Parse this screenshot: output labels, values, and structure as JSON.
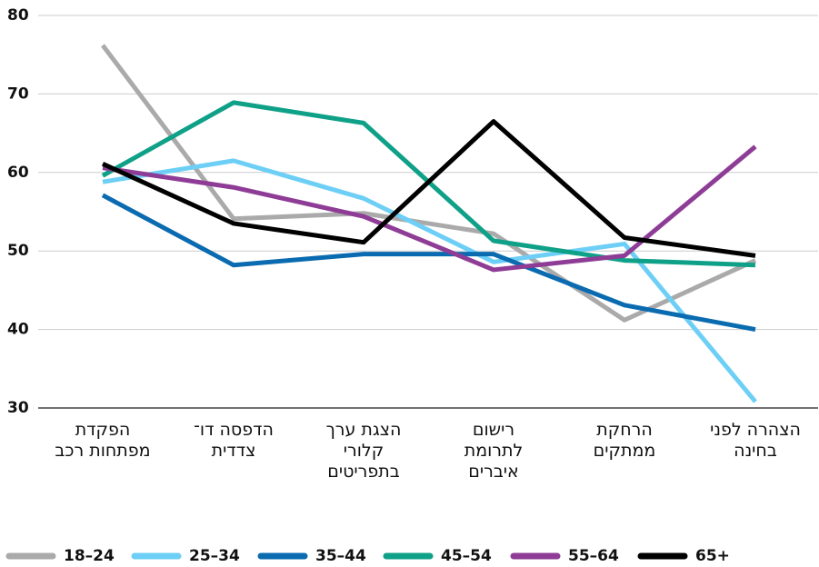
{
  "chart_data": {
    "type": "line",
    "categories": [
      "הפקדת\nמפתחות רכב",
      "הדפסה דו־\nצדדית",
      "הצגת ערך\nקלורי\nבתפריטים",
      "רישום\nלתרומת\nאיברים",
      "הרחקת\nממתקים",
      "הצהרה לפני\nבחינה"
    ],
    "series": [
      {
        "name": "18–24",
        "color": "#aaaaaa",
        "values": [
          76.2,
          54.1,
          54.8,
          52.2,
          41.2,
          48.8
        ]
      },
      {
        "name": "25–34",
        "color": "#6dcff6",
        "values": [
          58.8,
          61.5,
          56.7,
          48.6,
          50.9,
          30.8
        ]
      },
      {
        "name": "35–44",
        "color": "#0a6bb0",
        "values": [
          57.1,
          48.2,
          49.6,
          49.6,
          43.1,
          40
        ]
      },
      {
        "name": "45–54",
        "color": "#0fa088",
        "values": [
          59.6,
          68.9,
          66.3,
          51.3,
          48.8,
          48.2
        ]
      },
      {
        "name": "55–64",
        "color": "#8e3c96",
        "values": [
          60.6,
          58.1,
          54.4,
          47.6,
          49.4,
          63.3
        ]
      },
      {
        "name": "65+",
        "color": "#000000",
        "values": [
          61.1,
          53.5,
          51.1,
          66.5,
          51.7,
          49.4
        ]
      }
    ],
    "ylim": [
      30,
      80
    ],
    "yticks": [
      30,
      40,
      50,
      60,
      70,
      80
    ],
    "grid": true
  }
}
